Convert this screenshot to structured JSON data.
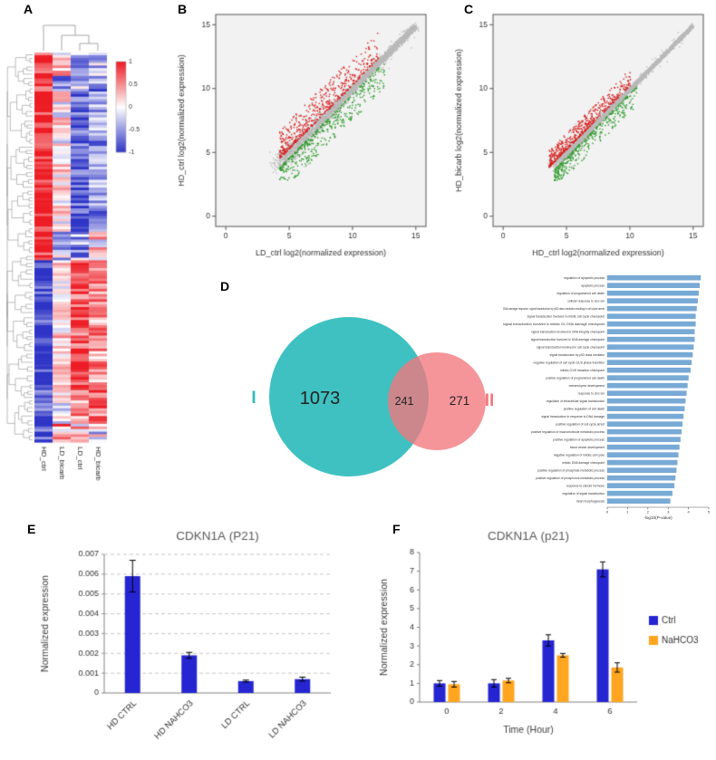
{
  "panel_labels": {
    "A": "A",
    "B": "B",
    "C": "C",
    "D": "D",
    "E": "E",
    "F": "F"
  },
  "chart_data": [
    {
      "id": "heatmap",
      "panel": "A",
      "type": "heatmap",
      "columns": [
        "HD_ctrl",
        "LD_bicarb",
        "LD_ctrl",
        "HD_bicarb"
      ],
      "colorbar_ticks": [
        1,
        0.5,
        0,
        -0.5,
        -1
      ],
      "rows": 150,
      "color_positive": "#ed1c24",
      "color_negative": "#2d34c6",
      "blocks": [
        {
          "frac": 0.055,
          "values": [
            0.95,
            0.2,
            -0.5,
            -0.35
          ],
          "noise": 0.5
        },
        {
          "frac": 0.04,
          "values": [
            0.85,
            -0.45,
            -0.3,
            -0.55
          ],
          "noise": 0.5
        },
        {
          "frac": 0.36,
          "values": [
            0.97,
            0.05,
            -0.8,
            -0.5
          ],
          "noise": 0.45
        },
        {
          "frac": 0.075,
          "values": [
            0.9,
            -0.2,
            -0.4,
            0.1
          ],
          "noise": 0.6
        },
        {
          "frac": 0.33,
          "values": [
            -0.97,
            0.15,
            0.75,
            0.45
          ],
          "noise": 0.45
        },
        {
          "frac": 0.09,
          "values": [
            -0.9,
            -0.1,
            0.5,
            0.6
          ],
          "noise": 0.5
        },
        {
          "frac": 0.05,
          "values": [
            -0.7,
            0.5,
            0.3,
            -0.2
          ],
          "noise": 0.7
        }
      ]
    },
    {
      "id": "scatterB",
      "panel": "B",
      "type": "scatter",
      "xlabel": "LD_ctrl log2(normalized expression)",
      "ylabel": "HD_ctrl log2(normalized expression)",
      "xlim": [
        0,
        15
      ],
      "ylim": [
        0,
        15
      ],
      "ticks": [
        0,
        5,
        10,
        15
      ],
      "gray_n": 3600,
      "spread": 1.0,
      "up": {
        "n": 560,
        "x0": 4.2,
        "x1": 12.0,
        "d0": 0.35,
        "d1": 2.6,
        "color": "#d62221"
      },
      "down": {
        "n": 470,
        "x0": 4.2,
        "x1": 12.5,
        "d0": 0.35,
        "d1": 2.4,
        "color": "#2e9b2b"
      },
      "gray_color": "#b9b9b9"
    },
    {
      "id": "scatterC",
      "panel": "C",
      "type": "scatter",
      "xlabel": "HD_ctrl log2(normalized expression)",
      "ylabel": "HD_bicarb log2(normalized expression)",
      "xlim": [
        0,
        15
      ],
      "ylim": [
        0,
        15
      ],
      "ticks": [
        0,
        5,
        10,
        15
      ],
      "gray_n": 3600,
      "spread": 0.6,
      "up": {
        "n": 520,
        "x0": 3.6,
        "x1": 10.0,
        "d0": 0.3,
        "d1": 1.6,
        "color": "#d62221"
      },
      "down": {
        "n": 380,
        "x0": 4.0,
        "x1": 10.5,
        "d0": 0.3,
        "d1": 1.8,
        "color": "#2e9b2b"
      },
      "gray_color": "#b9b9b9"
    },
    {
      "id": "venn",
      "panel": "D",
      "type": "venn",
      "set1_label": "I",
      "set2_label": "II",
      "set1_only": 1073,
      "intersection": 241,
      "set2_only": 271,
      "set1_color": "#2fbcbc",
      "set2_color": "#f2777c"
    },
    {
      "id": "go",
      "panel": "D",
      "type": "bar",
      "orientation": "horizontal",
      "xlabel": "-log10(P-value)",
      "xlim": [
        0,
        5
      ],
      "xticks": [
        0,
        1,
        2,
        3,
        4,
        5
      ],
      "bar_color": "#78aad6",
      "categories": [
        "regulation of apoptotic process",
        "apoptotic process",
        "regulation of programmed cell death",
        "cellular response to zinc ion",
        "DNA damage response, signal transduction by p53 class mediator resulting in cell cycle arrest",
        "signal transduction involved in mitotic cell cycle checkpoint",
        "signal transduction involved in mitotic G1 DNA damage checkpoint",
        "signal transduction involved in DNA integrity checkpoint",
        "signal transduction involved in DNA damage checkpoint",
        "signal transduction involved in cell cycle checkpoint",
        "signal transduction by p53 class mediator",
        "negative regulation of cell cycle G1/S phase transition",
        "mitotic G1/S transition checkpoint",
        "positive regulation of programmed cell death",
        "mesenchyme development",
        "response to zinc ion",
        "regulation of intracellular signal transduction",
        "positive regulation of cell death",
        "signal transduction in response to DNA damage",
        "positive regulation of cell cycle arrest",
        "positive regulation of macromolecule metabolic process",
        "positive regulation of apoptotic process",
        "blood vessel development",
        "negative regulation of mitotic cell cycle",
        "mitotic DNA damage checkpoint",
        "positive regulation of phosphate metabolic process",
        "positive regulation of phosphorus metabolic process",
        "response to steroid hormone",
        "regulation of signal transduction",
        "heart morphogenesis"
      ],
      "values": [
        4.6,
        4.55,
        4.5,
        4.45,
        4.4,
        4.35,
        4.35,
        4.3,
        4.3,
        4.25,
        4.2,
        4.15,
        4.1,
        4.0,
        3.95,
        3.9,
        3.85,
        3.8,
        3.75,
        3.7,
        3.65,
        3.6,
        3.55,
        3.5,
        3.45,
        3.4,
        3.35,
        3.3,
        3.2,
        3.1
      ]
    },
    {
      "id": "barE",
      "panel": "E",
      "type": "bar",
      "title": "CDKN1A (P21)",
      "ylabel": "Normalized expression",
      "categories": [
        "HD CTRL",
        "HD NAHCO3",
        "LD CTRL",
        "LD NAHCO3"
      ],
      "values": [
        0.0059,
        0.0019,
        0.0006,
        0.0007
      ],
      "errors": [
        0.0008,
        0.00015,
        5e-05,
        0.0001
      ],
      "ylim": [
        0,
        0.007
      ],
      "ystep": 0.001,
      "bar_color": "#2525d2"
    },
    {
      "id": "barF",
      "panel": "F",
      "type": "grouped_bar",
      "title": "CDKN1A (p21)",
      "ylabel": "Normalized expression",
      "xlabel": "Time (Hour)",
      "categories": [
        "0",
        "2",
        "4",
        "6"
      ],
      "ylim": [
        0,
        8
      ],
      "ystep": 1,
      "series": [
        {
          "name": "Ctrl",
          "color": "#2525d2",
          "values": [
            1.0,
            1.0,
            3.3,
            7.1
          ],
          "errors": [
            0.15,
            0.2,
            0.3,
            0.4
          ]
        },
        {
          "name": "NaHCO3",
          "color": "#ffa51f",
          "values": [
            0.95,
            1.15,
            2.5,
            1.85
          ],
          "errors": [
            0.15,
            0.12,
            0.1,
            0.25
          ]
        }
      ]
    }
  ]
}
